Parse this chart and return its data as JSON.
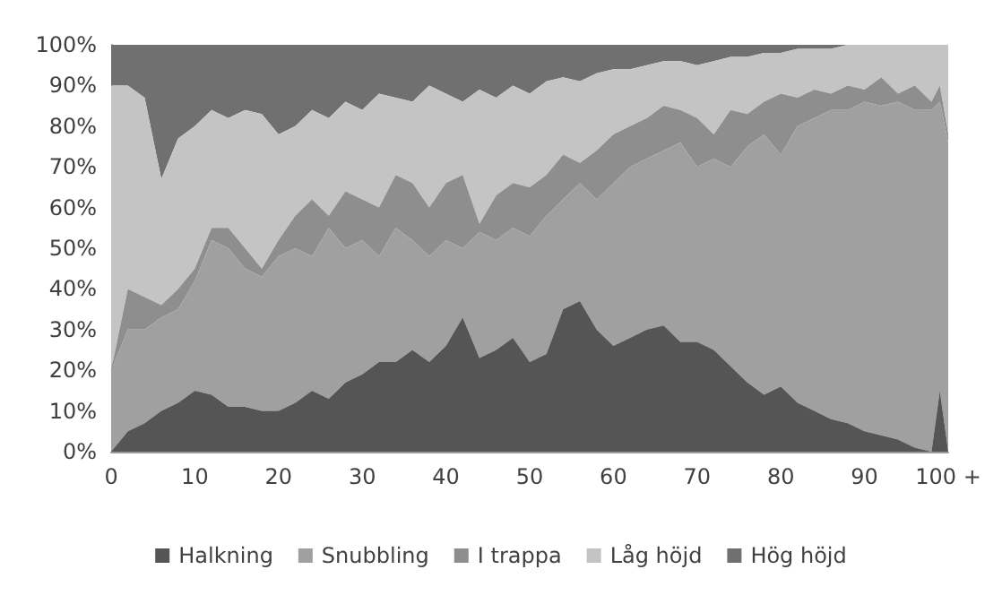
{
  "chart_data": {
    "type": "area",
    "stacked": true,
    "legend": "bottom",
    "x": [
      0,
      2,
      4,
      6,
      8,
      10,
      12,
      14,
      16,
      18,
      20,
      22,
      24,
      26,
      28,
      30,
      32,
      34,
      36,
      38,
      40,
      42,
      44,
      46,
      48,
      50,
      52,
      54,
      56,
      58,
      60,
      62,
      64,
      66,
      68,
      70,
      72,
      74,
      76,
      78,
      80,
      82,
      84,
      86,
      88,
      90,
      92,
      94,
      96,
      98,
      99,
      100
    ],
    "xlim": [
      0,
      100
    ],
    "xticks": [
      0,
      10,
      20,
      30,
      40,
      50,
      60,
      70,
      80,
      90,
      {
        "value": 100,
        "label": "100 +"
      }
    ],
    "ylim": [
      0,
      100
    ],
    "yticks": [
      {
        "value": 0,
        "label": "0%"
      },
      {
        "value": 10,
        "label": "10%"
      },
      {
        "value": 20,
        "label": "20%"
      },
      {
        "value": 30,
        "label": "30%"
      },
      {
        "value": 40,
        "label": "40%"
      },
      {
        "value": 50,
        "label": "50%"
      },
      {
        "value": 60,
        "label": "60%"
      },
      {
        "value": 70,
        "label": "70%"
      },
      {
        "value": 80,
        "label": "80%"
      },
      {
        "value": 90,
        "label": "90%"
      },
      {
        "value": 100,
        "label": "100%"
      }
    ],
    "series": [
      {
        "name": "Halkning",
        "color": "#555555",
        "values": [
          0,
          5,
          7,
          10,
          12,
          15,
          14,
          11,
          11,
          10,
          10,
          12,
          15,
          13,
          17,
          19,
          22,
          22,
          25,
          22,
          26,
          33,
          23,
          25,
          28,
          22,
          24,
          35,
          37,
          30,
          26,
          28,
          30,
          31,
          27,
          27,
          25,
          21,
          17,
          14,
          16,
          12,
          10,
          8,
          7,
          5,
          4,
          3,
          1,
          0,
          15,
          0
        ]
      },
      {
        "name": "Snubbling",
        "color": "#a0a0a0",
        "values": [
          20,
          25,
          23,
          23,
          23,
          27,
          38,
          39,
          34,
          33,
          38,
          38,
          33,
          42,
          33,
          33,
          26,
          33,
          27,
          26,
          26,
          17,
          31,
          27,
          27,
          31,
          34,
          27,
          29,
          32,
          40,
          42,
          42,
          43,
          49,
          43,
          47,
          49,
          58,
          64,
          57,
          68,
          72,
          76,
          77,
          81,
          81,
          83,
          83,
          84,
          71,
          76
        ]
      },
      {
        "name": "I trappa",
        "color": "#8e8e8e",
        "values": [
          0,
          10,
          8,
          3,
          5,
          3,
          3,
          5,
          5,
          2,
          4,
          8,
          14,
          3,
          14,
          10,
          12,
          13,
          14,
          12,
          14,
          18,
          2,
          11,
          11,
          12,
          10,
          11,
          5,
          12,
          12,
          10,
          10,
          11,
          8,
          12,
          6,
          14,
          8,
          8,
          15,
          7,
          7,
          4,
          6,
          3,
          7,
          2,
          6,
          2,
          4,
          2
        ]
      },
      {
        "name": "Låg höjd",
        "color": "#c4c4c4",
        "values": [
          70,
          50,
          49,
          31,
          37,
          35,
          29,
          27,
          34,
          38,
          26,
          22,
          22,
          24,
          22,
          22,
          28,
          19,
          20,
          30,
          22,
          18,
          33,
          24,
          24,
          23,
          23,
          19,
          20,
          19,
          16,
          14,
          13,
          11,
          12,
          13,
          18,
          13,
          14,
          12,
          10,
          12,
          10,
          11,
          10,
          11,
          8,
          12,
          10,
          14,
          10,
          22
        ]
      },
      {
        "name": "Hög höjd",
        "color": "#707070",
        "values": [
          10,
          10,
          13,
          33,
          23,
          20,
          16,
          18,
          16,
          17,
          22,
          20,
          16,
          18,
          14,
          16,
          12,
          13,
          14,
          10,
          12,
          14,
          11,
          13,
          10,
          12,
          9,
          8,
          9,
          7,
          6,
          6,
          5,
          4,
          4,
          5,
          4,
          3,
          3,
          2,
          2,
          1,
          1,
          1,
          0,
          0,
          0,
          0,
          0,
          0,
          0,
          0
        ]
      }
    ]
  }
}
